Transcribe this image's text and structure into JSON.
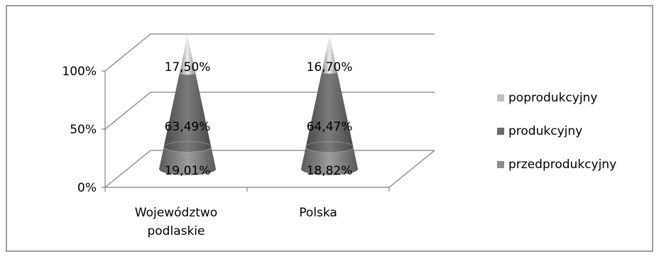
{
  "chart_data": {
    "type": "bar",
    "subtype": "3d-stacked-100-cone",
    "categories": [
      "Województwo\npodlaskie",
      "Polska"
    ],
    "series": [
      {
        "name": "przedprodukcyjny",
        "values": [
          19.01,
          18.82
        ],
        "labels": [
          "19,01%",
          "18,82%"
        ]
      },
      {
        "name": "produkcyjny",
        "values": [
          63.49,
          64.47
        ],
        "labels": [
          "63,49%",
          "64,47%"
        ]
      },
      {
        "name": "poprodukcyjny",
        "values": [
          17.5,
          16.7
        ],
        "labels": [
          "17,50%",
          "16,70%"
        ]
      }
    ],
    "y_ticks": [
      "0%",
      "50%",
      "100%"
    ],
    "ylim": [
      0,
      100
    ],
    "grid": true,
    "legend_position": "right",
    "legend_order": [
      "poprodukcyjny",
      "produkcyjny",
      "przedprodukcyjny"
    ],
    "colors": {
      "poprodukcyjny": "#bfbfbf",
      "produkcyjny": "#6b6b6b",
      "przedprodukcyjny": "#8c8c8c",
      "grid": "#808080",
      "border": "#7f7f7f",
      "text": "#000000"
    }
  }
}
